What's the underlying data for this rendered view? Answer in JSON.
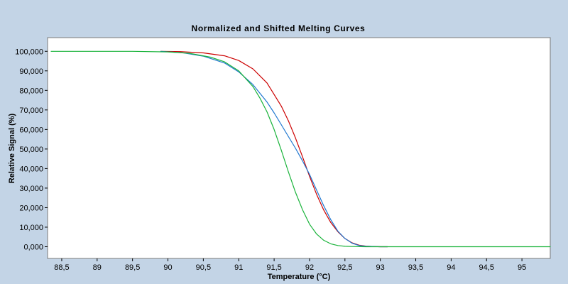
{
  "chart_data": {
    "type": "line",
    "title": "Normalized and Shifted Melting Curves",
    "xlabel": "Temperature (°C)",
    "ylabel": "Relative Signal (%)",
    "xlim": [
      88.3,
      95.4
    ],
    "ylim": [
      -6000,
      107000
    ],
    "grid": false,
    "legend": "none",
    "x_ticks": [
      {
        "value": 88.5,
        "label": "88,5"
      },
      {
        "value": 89,
        "label": "89"
      },
      {
        "value": 89.5,
        "label": "89,5"
      },
      {
        "value": 90,
        "label": "90"
      },
      {
        "value": 90.5,
        "label": "90,5"
      },
      {
        "value": 91,
        "label": "91"
      },
      {
        "value": 91.5,
        "label": "91,5"
      },
      {
        "value": 92,
        "label": "92"
      },
      {
        "value": 92.5,
        "label": "92,5"
      },
      {
        "value": 93,
        "label": "93"
      },
      {
        "value": 93.5,
        "label": "93,5"
      },
      {
        "value": 94,
        "label": "94"
      },
      {
        "value": 94.5,
        "label": "94,5"
      },
      {
        "value": 95,
        "label": "95"
      }
    ],
    "y_ticks": [
      {
        "value": 0,
        "label": "0,000"
      },
      {
        "value": 10000,
        "label": "10,000"
      },
      {
        "value": 20000,
        "label": "20,000"
      },
      {
        "value": 30000,
        "label": "30,000"
      },
      {
        "value": 40000,
        "label": "40,000"
      },
      {
        "value": 50000,
        "label": "50,000"
      },
      {
        "value": 60000,
        "label": "60,000"
      },
      {
        "value": 70000,
        "label": "70,000"
      },
      {
        "value": 80000,
        "label": "80,000"
      },
      {
        "value": 90000,
        "label": "90,000"
      },
      {
        "value": 100000,
        "label": "100,000"
      }
    ],
    "series": [
      {
        "color": "#cc0000",
        "x": [
          89.9,
          90.2,
          90.5,
          90.8,
          91.0,
          91.2,
          91.4,
          91.6,
          91.7,
          91.8,
          91.9,
          92.0,
          92.1,
          92.2,
          92.3,
          92.4,
          92.5,
          92.6,
          92.7,
          92.8,
          92.9,
          93.0,
          93.1
        ],
        "y": [
          100000,
          99800,
          99200,
          97700,
          95300,
          91000,
          83800,
          72000,
          64600,
          55800,
          46100,
          36000,
          26800,
          18800,
          12400,
          7700,
          4200,
          2000,
          800,
          300,
          100,
          0,
          0
        ]
      },
      {
        "color": "#1f77d0",
        "x": [
          89.9,
          90.2,
          90.5,
          90.8,
          91.0,
          91.2,
          91.4,
          91.5,
          91.6,
          91.7,
          91.8,
          91.9,
          92.0,
          92.1,
          92.2,
          92.3,
          92.4,
          92.5,
          92.6,
          92.7,
          92.8,
          93.0,
          93.1
        ],
        "y": [
          100000,
          99300,
          97500,
          94000,
          89500,
          83000,
          74000,
          68500,
          62500,
          56500,
          50500,
          44000,
          37000,
          29000,
          21000,
          13800,
          8000,
          4200,
          1800,
          600,
          200,
          0,
          0
        ]
      },
      {
        "color": "#19b33a",
        "x": [
          88.35,
          89.0,
          89.5,
          90.0,
          90.3,
          90.6,
          90.8,
          91.0,
          91.2,
          91.3,
          91.4,
          91.5,
          91.6,
          91.7,
          91.8,
          91.9,
          92.0,
          92.1,
          92.2,
          92.3,
          92.4,
          92.5,
          92.6,
          92.8,
          93.0,
          94.0,
          95.4
        ],
        "y": [
          100000,
          100000,
          100000,
          99700,
          99000,
          97000,
          94600,
          90000,
          82000,
          76000,
          69000,
          60000,
          49500,
          38500,
          28000,
          19000,
          11500,
          6500,
          3300,
          1500,
          600,
          200,
          100,
          0,
          0,
          0,
          0
        ]
      }
    ]
  }
}
